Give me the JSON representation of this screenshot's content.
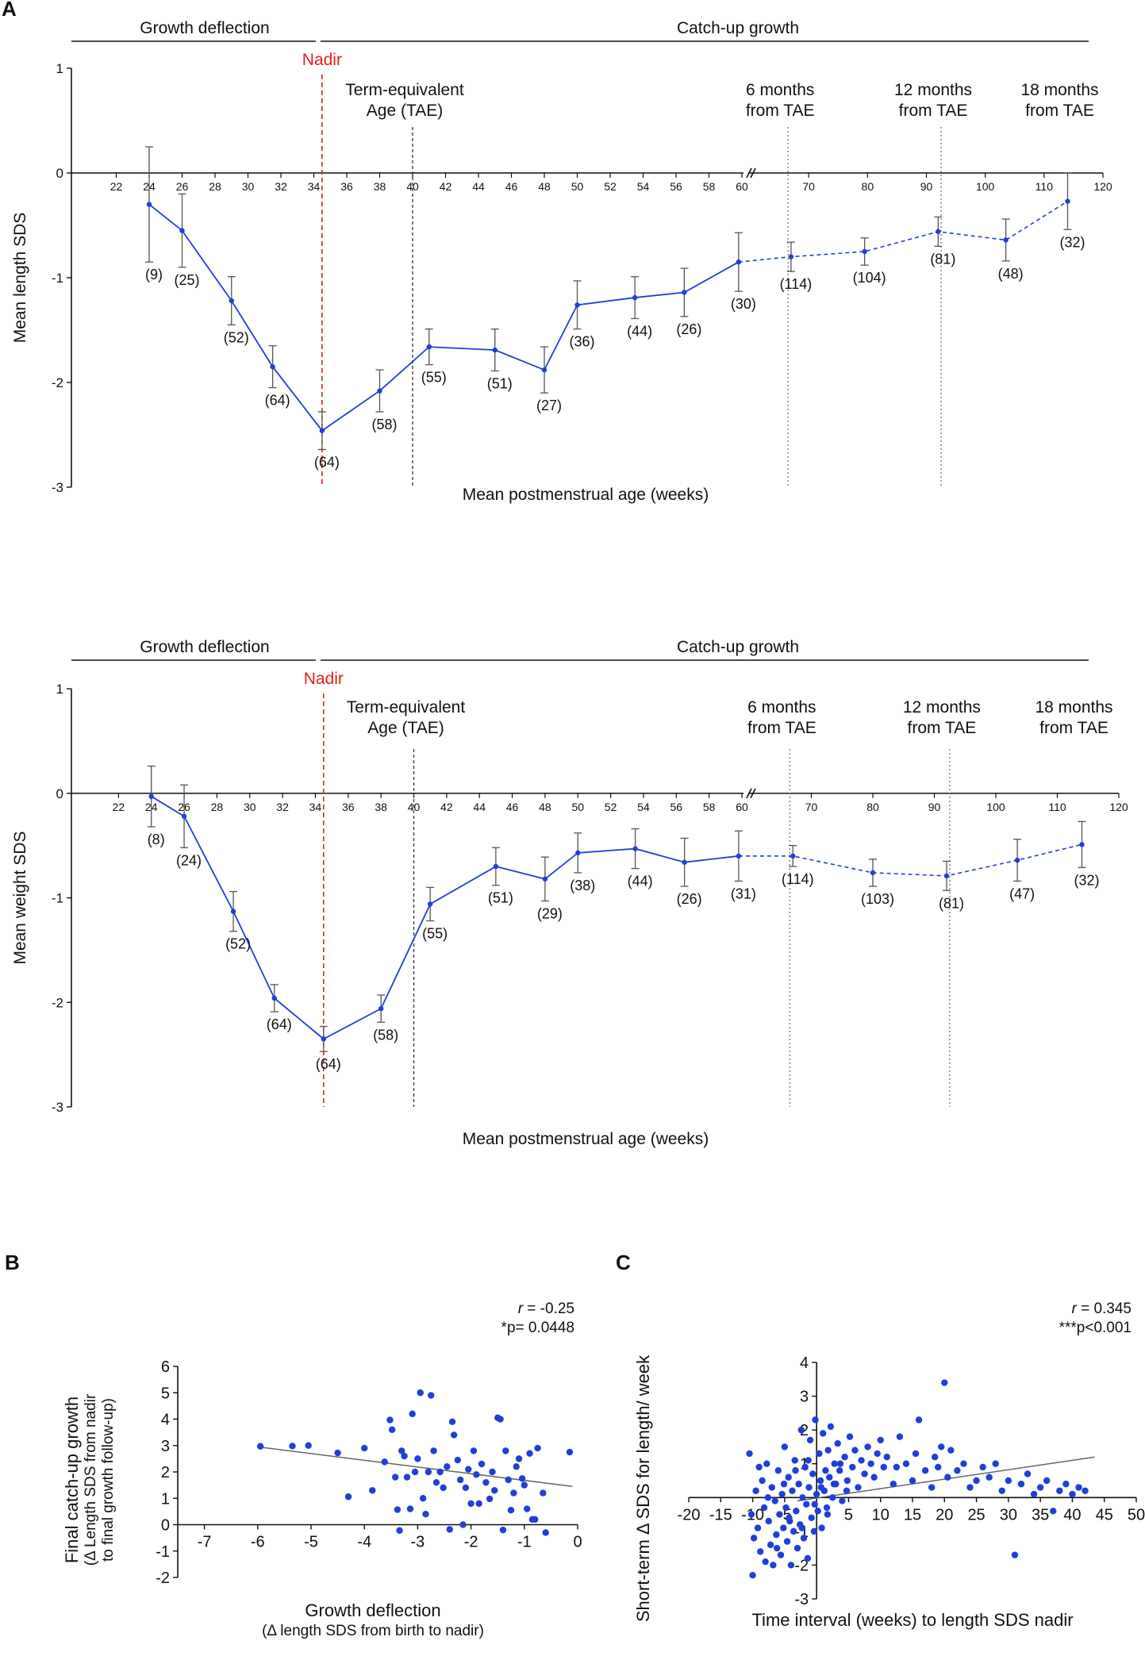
{
  "figure": {
    "panel_a_letter": "A",
    "panel_b_letter": "B",
    "panel_c_letter": "C",
    "colors": {
      "series": "#1f3fd6",
      "nadir": "#e0201b",
      "axis": "#111111",
      "guide": "#777777",
      "errorbar": "#555555",
      "regression": "#666666"
    }
  },
  "chart_data": [
    {
      "id": "length",
      "type": "line",
      "title": "",
      "phase_left": "Growth deflection",
      "phase_right": "Catch-up growth",
      "nadir_label": "Nadir",
      "ylabel": "Mean length SDS",
      "xlabel": "Mean postmenstrual age (weeks)",
      "ylim": [
        -3,
        1
      ],
      "yticks": [
        1,
        0,
        -1,
        -2,
        -3
      ],
      "y_tick_labels": [
        "1",
        "0",
        "-1",
        "-2",
        "-3"
      ],
      "x_break": true,
      "x_segment1_range": [
        20,
        60
      ],
      "x_segment2_range": [
        60,
        120
      ],
      "x_ticks_segment1": [
        "22",
        "24",
        "26",
        "28",
        "30",
        "32",
        "34",
        "36",
        "38",
        "40",
        "42",
        "44",
        "46",
        "48",
        "50",
        "52",
        "54",
        "56",
        "58",
        "60"
      ],
      "x_ticks_segment2": [
        "70",
        "80",
        "90",
        "100",
        "110",
        "120"
      ],
      "nadir_x": 34.5,
      "vertical_guides": [
        {
          "x": 40,
          "line1": "Term-equivalent",
          "line2": "Age (TAE)"
        },
        {
          "x": 66.5,
          "line1": "6 months",
          "line2": "from TAE"
        },
        {
          "x": 92.5,
          "line1": "12 months",
          "line2": "from TAE"
        },
        {
          "x": 114,
          "line1": "18 months",
          "line2": "from TAE"
        }
      ],
      "points": [
        {
          "x": 24,
          "y": -0.3,
          "err": 0.55,
          "n": "(9)"
        },
        {
          "x": 26,
          "y": -0.55,
          "err": 0.35,
          "n": "(25)"
        },
        {
          "x": 29,
          "y": -1.22,
          "err": 0.23,
          "n": "(52)"
        },
        {
          "x": 31.5,
          "y": -1.85,
          "err": 0.2,
          "n": "(64)"
        },
        {
          "x": 34.5,
          "y": -2.46,
          "err": 0.18,
          "n": "(64)"
        },
        {
          "x": 38,
          "y": -2.08,
          "err": 0.2,
          "n": "(58)"
        },
        {
          "x": 41,
          "y": -1.66,
          "err": 0.17,
          "n": "(55)"
        },
        {
          "x": 45,
          "y": -1.69,
          "err": 0.2,
          "n": "(51)"
        },
        {
          "x": 48,
          "y": -1.88,
          "err": 0.22,
          "n": "(27)"
        },
        {
          "x": 50,
          "y": -1.26,
          "err": 0.23,
          "n": "(36)"
        },
        {
          "x": 53.5,
          "y": -1.19,
          "err": 0.2,
          "n": "(44)"
        },
        {
          "x": 56.5,
          "y": -1.14,
          "err": 0.23,
          "n": "(26)"
        },
        {
          "x": 59.8,
          "y": -0.85,
          "err": 0.28,
          "n": "(30)"
        },
        {
          "x": 67,
          "y": -0.8,
          "err": 0.14,
          "n": "(114)"
        },
        {
          "x": 79.5,
          "y": -0.75,
          "err": 0.13,
          "n": "(104)"
        },
        {
          "x": 92,
          "y": -0.56,
          "err": 0.14,
          "n": "(81)"
        },
        {
          "x": 103.5,
          "y": -0.64,
          "err": 0.2,
          "n": "(48)"
        },
        {
          "x": 114,
          "y": -0.27,
          "err": 0.27,
          "n": "(32)"
        }
      ]
    },
    {
      "id": "weight",
      "type": "line",
      "title": "",
      "phase_left": "Growth deflection",
      "phase_right": "Catch-up growth",
      "nadir_label": "Nadir",
      "ylabel": "Mean weight SDS",
      "xlabel": "Mean postmenstrual age (weeks)",
      "ylim": [
        -3,
        1
      ],
      "yticks": [
        1,
        0,
        -1,
        -2,
        -3
      ],
      "y_tick_labels": [
        "1",
        "0",
        "-1",
        "-2",
        "-3"
      ],
      "x_break": true,
      "x_segment1_range": [
        20,
        60
      ],
      "x_segment2_range": [
        60,
        120
      ],
      "x_ticks_segment1": [
        "22",
        "24",
        "26",
        "28",
        "30",
        "32",
        "34",
        "36",
        "38",
        "40",
        "42",
        "44",
        "46",
        "48",
        "50",
        "52",
        "54",
        "56",
        "58",
        "60"
      ],
      "x_ticks_segment2": [
        "70",
        "80",
        "90",
        "100",
        "110",
        "120"
      ],
      "nadir_x": 34.5,
      "vertical_guides": [
        {
          "x": 40,
          "line1": "Term-equivalent",
          "line2": "Age (TAE)"
        },
        {
          "x": 66.5,
          "line1": "6 months",
          "line2": "from TAE"
        },
        {
          "x": 92.5,
          "line1": "12 months",
          "line2": "from TAE"
        },
        {
          "x": 114,
          "line1": "18 months",
          "line2": "from TAE"
        }
      ],
      "points": [
        {
          "x": 24,
          "y": -0.03,
          "err": 0.29,
          "n": "(8)"
        },
        {
          "x": 26,
          "y": -0.22,
          "err": 0.3,
          "n": "(24)"
        },
        {
          "x": 29,
          "y": -1.13,
          "err": 0.19,
          "n": "(52)"
        },
        {
          "x": 31.5,
          "y": -1.96,
          "err": 0.13,
          "n": "(64)"
        },
        {
          "x": 34.5,
          "y": -2.35,
          "err": 0.12,
          "n": "(64)"
        },
        {
          "x": 38,
          "y": -2.06,
          "err": 0.13,
          "n": "(58)"
        },
        {
          "x": 41,
          "y": -1.06,
          "err": 0.16,
          "n": "(55)"
        },
        {
          "x": 45,
          "y": -0.7,
          "err": 0.18,
          "n": "(51)"
        },
        {
          "x": 48,
          "y": -0.82,
          "err": 0.21,
          "n": "(29)"
        },
        {
          "x": 50,
          "y": -0.57,
          "err": 0.19,
          "n": "(38)"
        },
        {
          "x": 53.5,
          "y": -0.53,
          "err": 0.19,
          "n": "(44)"
        },
        {
          "x": 56.5,
          "y": -0.66,
          "err": 0.23,
          "n": "(26)"
        },
        {
          "x": 59.8,
          "y": -0.6,
          "err": 0.24,
          "n": "(31)"
        },
        {
          "x": 67,
          "y": -0.6,
          "err": 0.1,
          "n": "(114)"
        },
        {
          "x": 80,
          "y": -0.76,
          "err": 0.13,
          "n": "(103)"
        },
        {
          "x": 92,
          "y": -0.79,
          "err": 0.14,
          "n": "(81)"
        },
        {
          "x": 103.5,
          "y": -0.64,
          "err": 0.2,
          "n": "(47)"
        },
        {
          "x": 114,
          "y": -0.49,
          "err": 0.22,
          "n": "(32)"
        }
      ]
    },
    {
      "id": "deflection_vs_catchup",
      "type": "scatter",
      "title": "",
      "ylabel_line1": "Final catch-up growth",
      "ylabel_line2": "(Δ Length SDS from nadir",
      "ylabel_line3": "to final growth follow-up)",
      "xlabel": "Growth deflection",
      "xlabel_sub": "(Δ length SDS from birth to nadir)",
      "r_label": "r",
      "r_value": " = -0.25",
      "p_label": "*p= 0.0448",
      "xlim": [
        -7.5,
        0
      ],
      "ylim": [
        -2,
        6
      ],
      "x_ticks": [
        "-7",
        "-6",
        "-5",
        "-4",
        "-3",
        "-2",
        "-1",
        "0"
      ],
      "y_ticks": [
        "6",
        "5",
        "4",
        "3",
        "2",
        "1",
        "0",
        "-1",
        "-2"
      ],
      "regression": {
        "x1": -6,
        "y1": 2.95,
        "x2": -0.1,
        "y2": 1.45
      },
      "points": [
        [
          -5.95,
          2.97
        ],
        [
          -5.35,
          2.98
        ],
        [
          -5.05,
          3.0
        ],
        [
          -4.5,
          2.72
        ],
        [
          -4.3,
          1.06
        ],
        [
          -4.0,
          2.9
        ],
        [
          -3.85,
          1.3
        ],
        [
          -3.62,
          2.38
        ],
        [
          -3.52,
          3.97
        ],
        [
          -3.48,
          3.6
        ],
        [
          -3.42,
          1.8
        ],
        [
          -3.38,
          0.57
        ],
        [
          -3.34,
          -0.22
        ],
        [
          -3.3,
          2.8
        ],
        [
          -3.25,
          2.6
        ],
        [
          -3.2,
          1.8
        ],
        [
          -3.14,
          0.6
        ],
        [
          -3.1,
          4.2
        ],
        [
          -3.05,
          2.0
        ],
        [
          -3.0,
          2.5
        ],
        [
          -2.95,
          5.0
        ],
        [
          -2.9,
          1.0
        ],
        [
          -2.85,
          0.4
        ],
        [
          -2.8,
          2.0
        ],
        [
          -2.75,
          4.9
        ],
        [
          -2.7,
          2.8
        ],
        [
          -2.65,
          1.6
        ],
        [
          -2.58,
          2.0
        ],
        [
          -2.52,
          1.4
        ],
        [
          -2.45,
          2.2
        ],
        [
          -2.4,
          -0.18
        ],
        [
          -2.35,
          3.9
        ],
        [
          -2.32,
          3.4
        ],
        [
          -2.25,
          2.45
        ],
        [
          -2.2,
          1.7
        ],
        [
          -2.15,
          0.0
        ],
        [
          -2.1,
          1.4
        ],
        [
          -2.05,
          2.1
        ],
        [
          -2.0,
          0.8
        ],
        [
          -1.95,
          2.8
        ],
        [
          -1.9,
          1.9
        ],
        [
          -1.85,
          0.8
        ],
        [
          -1.8,
          2.3
        ],
        [
          -1.72,
          1.6
        ],
        [
          -1.65,
          0.98
        ],
        [
          -1.6,
          2.0
        ],
        [
          -1.56,
          1.3
        ],
        [
          -1.5,
          4.05
        ],
        [
          -1.45,
          4.0
        ],
        [
          -1.4,
          -0.2
        ],
        [
          -1.35,
          2.8
        ],
        [
          -1.3,
          1.7
        ],
        [
          -1.25,
          0.55
        ],
        [
          -1.2,
          1.2
        ],
        [
          -1.15,
          2.2
        ],
        [
          -1.1,
          2.5
        ],
        [
          -1.04,
          1.75
        ],
        [
          -1.0,
          1.5
        ],
        [
          -0.95,
          0.6
        ],
        [
          -0.9,
          2.7
        ],
        [
          -0.85,
          0.2
        ],
        [
          -0.8,
          0.2
        ],
        [
          -0.75,
          2.9
        ],
        [
          -0.65,
          1.2
        ],
        [
          -0.6,
          -0.3
        ],
        [
          -0.15,
          2.75
        ]
      ]
    },
    {
      "id": "interval_vs_shortterm",
      "type": "scatter",
      "title": "",
      "ylabel": "Short-term Δ SDS for length/ week",
      "xlabel": "Time interval (weeks) to length SDS nadir",
      "r_label": "r",
      "r_value": " = 0.345",
      "p_label": "***p<0.001",
      "xlim": [
        -20,
        50
      ],
      "ylim": [
        -3,
        4
      ],
      "x_ticks": [
        "-20",
        "-15",
        "-10",
        "-5",
        "5",
        "10",
        "15",
        "20",
        "25",
        "30",
        "35",
        "40",
        "45",
        "50"
      ],
      "y_ticks": [
        "4",
        "3",
        "2",
        "1",
        "-1",
        "-2",
        "-3"
      ],
      "regression": {
        "x1": -3,
        "y1": -0.1,
        "x2": 43.5,
        "y2": 1.2
      },
      "points": [
        [
          -10.5,
          1.3
        ],
        [
          -10.2,
          -0.5
        ],
        [
          -9.8,
          -1.2
        ],
        [
          -10.0,
          -2.3
        ],
        [
          -9.5,
          0.2
        ],
        [
          -9.2,
          -0.9
        ],
        [
          -8.8,
          -1.6
        ],
        [
          -8.5,
          0.5
        ],
        [
          -8.2,
          -0.3
        ],
        [
          -8.0,
          -1.9
        ],
        [
          -7.8,
          1.0
        ],
        [
          -7.5,
          -0.7
        ],
        [
          -7.2,
          -1.4
        ],
        [
          -7.0,
          0.3
        ],
        [
          -6.8,
          -2.0
        ],
        [
          -6.5,
          -0.1
        ],
        [
          -6.3,
          -1.1
        ],
        [
          -6.0,
          0.8
        ],
        [
          -5.8,
          -0.5
        ],
        [
          -5.6,
          -1.7
        ],
        [
          -5.4,
          0.1
        ],
        [
          -5.2,
          -0.9
        ],
        [
          -5.0,
          1.5
        ],
        [
          -4.8,
          -0.3
        ],
        [
          -4.6,
          -1.3
        ],
        [
          -4.4,
          0.6
        ],
        [
          -4.2,
          -0.7
        ],
        [
          -4.0,
          -2.0
        ],
        [
          -3.8,
          0.2
        ],
        [
          -3.6,
          -1.0
        ],
        [
          -3.4,
          1.1
        ],
        [
          -3.2,
          -0.4
        ],
        [
          -3.0,
          -1.5
        ],
        [
          -2.8,
          0.4
        ],
        [
          -2.6,
          -0.8
        ],
        [
          -2.4,
          2.0
        ],
        [
          -2.2,
          0.0
        ],
        [
          -2.0,
          -1.2
        ],
        [
          -1.8,
          0.9
        ],
        [
          -1.6,
          -0.2
        ],
        [
          -1.4,
          -1.8
        ],
        [
          -1.2,
          0.3
        ],
        [
          -1.0,
          1.7
        ],
        [
          -0.8,
          -0.6
        ],
        [
          -0.6,
          0.7
        ],
        [
          -0.4,
          -1.0
        ],
        [
          -0.2,
          2.3
        ],
        [
          0.0,
          0.1
        ],
        [
          0.2,
          -0.4
        ],
        [
          0.4,
          1.3
        ],
        [
          0.6,
          0.5
        ],
        [
          0.8,
          -0.9
        ],
        [
          1.0,
          1.9
        ],
        [
          1.2,
          0.2
        ],
        [
          1.4,
          0.8
        ],
        [
          1.6,
          -0.3
        ],
        [
          1.8,
          1.4
        ],
        [
          2.0,
          0.6
        ],
        [
          2.2,
          2.1
        ],
        [
          2.5,
          0.0
        ],
        [
          2.8,
          1.0
        ],
        [
          3.0,
          0.4
        ],
        [
          3.3,
          1.6
        ],
        [
          3.6,
          0.8
        ],
        [
          4.0,
          -0.1
        ],
        [
          4.4,
          1.2
        ],
        [
          4.8,
          0.5
        ],
        [
          5.2,
          1.8
        ],
        [
          5.6,
          0.9
        ],
        [
          6.0,
          1.4
        ],
        [
          6.5,
          0.3
        ],
        [
          7.0,
          1.1
        ],
        [
          7.5,
          0.7
        ],
        [
          8.0,
          1.5
        ],
        [
          8.5,
          1.0
        ],
        [
          9.0,
          0.6
        ],
        [
          9.5,
          1.3
        ],
        [
          10.0,
          1.7
        ],
        [
          10.5,
          0.9
        ],
        [
          11.0,
          1.2
        ],
        [
          12.0,
          0.4
        ],
        [
          12.5,
          0.9
        ],
        [
          13.0,
          1.8
        ],
        [
          14.0,
          1.0
        ],
        [
          15.0,
          0.5
        ],
        [
          15.5,
          1.3
        ],
        [
          16.0,
          2.3
        ],
        [
          17.0,
          0.8
        ],
        [
          18.0,
          0.3
        ],
        [
          18.5,
          1.2
        ],
        [
          19.0,
          0.9
        ],
        [
          19.5,
          1.5
        ],
        [
          20.0,
          3.4
        ],
        [
          20.5,
          0.6
        ],
        [
          21.0,
          1.4
        ],
        [
          22.0,
          0.8
        ],
        [
          23.0,
          1.0
        ],
        [
          24.0,
          0.3
        ],
        [
          25.0,
          0.5
        ],
        [
          26.0,
          0.9
        ],
        [
          27.0,
          0.6
        ],
        [
          28.0,
          1.0
        ],
        [
          29.0,
          0.2
        ],
        [
          30.0,
          0.5
        ],
        [
          31.0,
          -1.7
        ],
        [
          32.0,
          0.4
        ],
        [
          33.0,
          0.7
        ],
        [
          34.0,
          0.1
        ],
        [
          35.0,
          0.3
        ],
        [
          36.0,
          0.5
        ],
        [
          37.0,
          -0.4
        ],
        [
          38.0,
          0.2
        ],
        [
          39.0,
          0.4
        ],
        [
          40.0,
          0.1
        ],
        [
          41.0,
          0.3
        ],
        [
          42.0,
          0.2
        ],
        [
          -9.0,
          0.9
        ],
        [
          -7.6,
          0.0
        ],
        [
          -6.2,
          -1.5
        ],
        [
          -5.1,
          0.4
        ],
        [
          -4.3,
          -0.6
        ],
        [
          -3.3,
          0.8
        ],
        [
          -2.3,
          -0.9
        ],
        [
          -1.3,
          1.1
        ],
        [
          -0.3,
          -0.2
        ],
        [
          0.7,
          0.3
        ],
        [
          1.7,
          -0.5
        ],
        [
          2.7,
          0.4
        ],
        [
          3.7,
          1.0
        ],
        [
          4.7,
          0.2
        ]
      ]
    }
  ]
}
